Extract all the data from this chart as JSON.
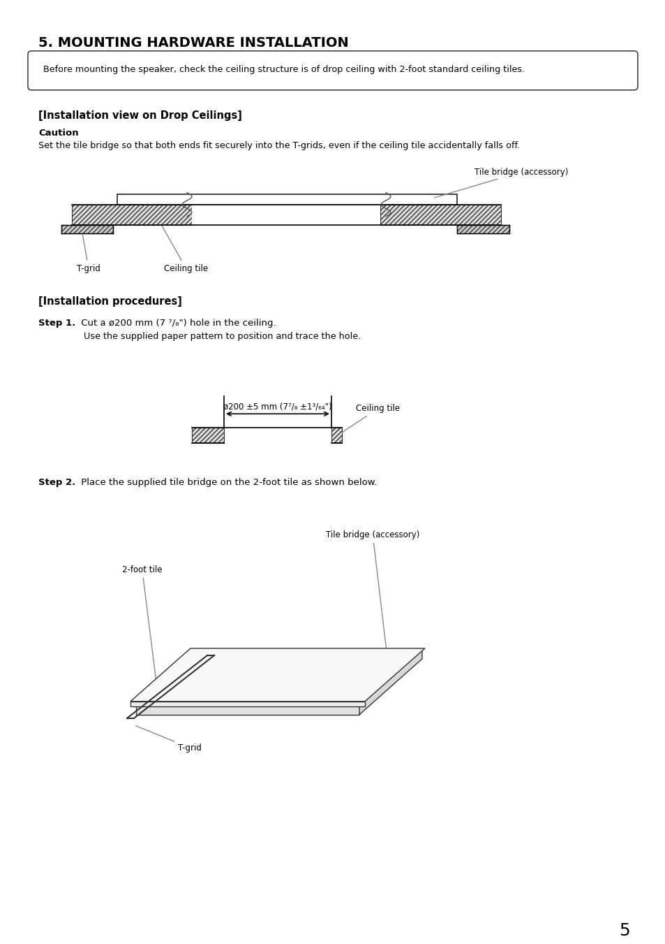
{
  "title": "5. MOUNTING HARDWARE INSTALLATION",
  "notice_text": "Before mounting the speaker, check the ceiling structure is of drop ceiling with 2-foot standard ceiling tiles.",
  "section1_title": "[Installation view on Drop Ceilings]",
  "caution_title": "Caution",
  "caution_text": "Set the tile bridge so that both ends fit securely into the T-grids, even if the ceiling tile accidentally falls off.",
  "section2_title": "[Installation procedures]",
  "step1_bold": "Step 1.",
  "step1_text": " Cut a ø200 mm (7 ⁷/₈\") hole in the ceiling.",
  "step1_sub": "Use the supplied paper pattern to position and trace the hole.",
  "dim_label": "ø200 ±5 mm (7⁷/₈ ±1³/₆₄\")",
  "ceiling_tile_label1": "Ceiling tile",
  "step2_bold": "Step 2.",
  "step2_text": " Place the supplied tile bridge on the 2-foot tile as shown below.",
  "tile_bridge_label1": "Tile bridge (accessory)",
  "tgrid_label1": "T-grid",
  "ceiling_tile_label2": "Ceiling tile",
  "tile_bridge_label2": "Tile bridge (accessory)",
  "tgrid_label2": "T-grid",
  "two_foot_tile_label": "2-foot tile",
  "page_number": "5",
  "bg_color": "#ffffff",
  "text_color": "#000000"
}
